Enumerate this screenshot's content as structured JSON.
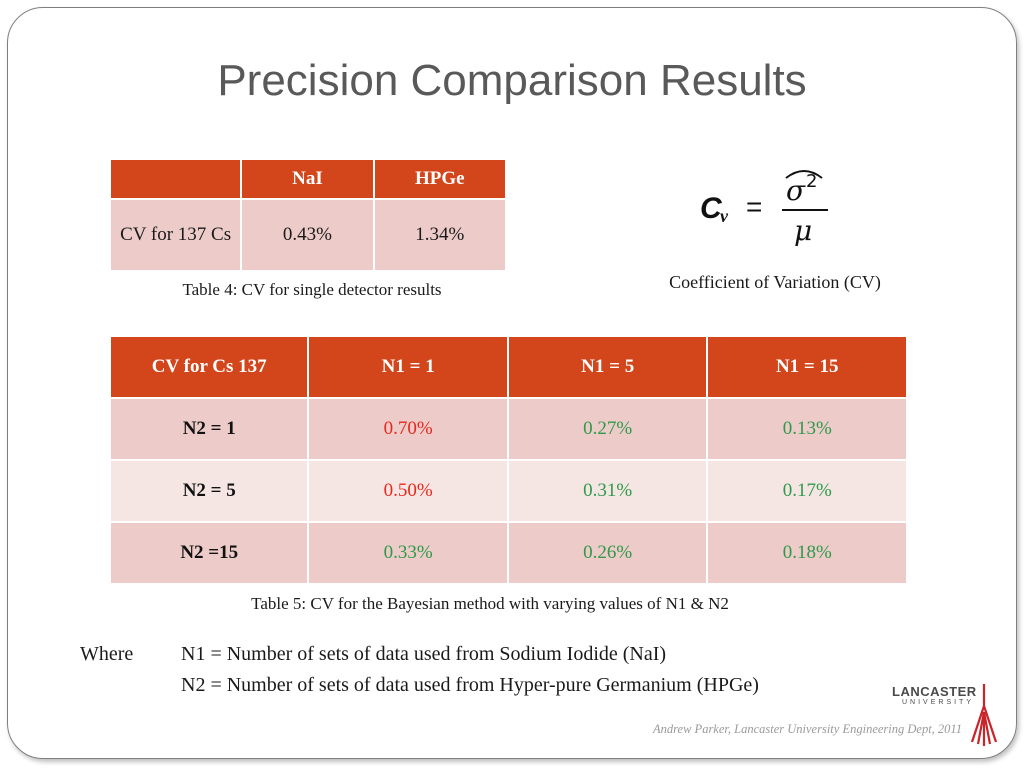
{
  "slide": {
    "title": "Precision Comparison Results",
    "footer": "Andrew Parker, Lancaster University Engineering Dept, 2011"
  },
  "table4": {
    "headers": [
      "",
      "NaI",
      "HPGe"
    ],
    "row": {
      "label": "CV for 137 Cs",
      "nai": "0.43%",
      "hpge": "1.34%"
    },
    "caption": "Table 4: CV for single detector results"
  },
  "formula": {
    "lhs": "C",
    "lhs_sub": "v",
    "equals": "=",
    "numerator": "σ",
    "numerator_sup": "2",
    "denominator": "μ",
    "caption": "Coefficient of Variation (CV)"
  },
  "table5": {
    "headers": [
      "CV for Cs 137",
      "N1 = 1",
      "N1 = 5",
      "N1 = 15"
    ],
    "rows": [
      {
        "label": "N2 = 1",
        "values": [
          "0.70%",
          "0.27%",
          "0.13%"
        ]
      },
      {
        "label": "N2 = 5",
        "values": [
          "0.50%",
          "0.31%",
          "0.17%"
        ]
      },
      {
        "label": "N2 =15",
        "values": [
          "0.33%",
          "0.26%",
          "0.18%"
        ]
      }
    ],
    "caption": "Table 5: CV for the Bayesian method with varying values of N1 & N2"
  },
  "where": {
    "label": "Where",
    "n1_def": "N1 = Number of sets of data used from Sodium Iodide (NaI)",
    "n2_def": "N2 = Number of sets of data used from Hyper-pure Germanium (HPGe)"
  },
  "logo": {
    "name": "LANCASTER",
    "sub": "UNIVERSITY"
  },
  "colors": {
    "header_bg": "#d3461b",
    "row_odd_bg": "#eccbc9",
    "row_even_bg": "#f5e6e4",
    "value_red": "#e8281d",
    "value_green": "#2e9a4a",
    "title_gray": "#595959"
  }
}
